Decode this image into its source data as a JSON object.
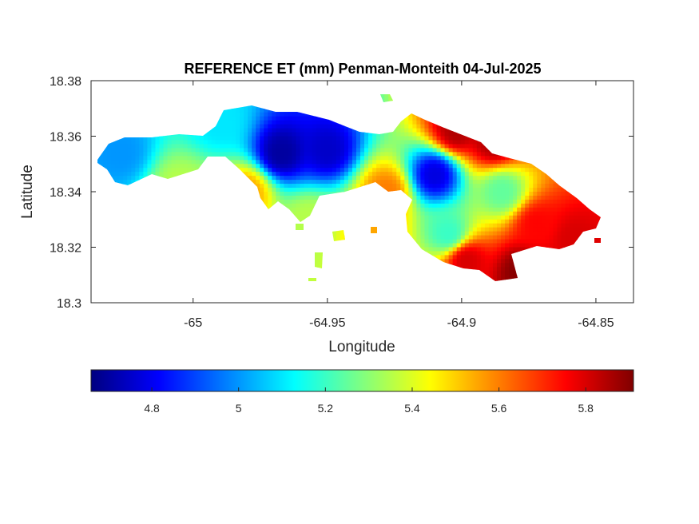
{
  "chart_data": {
    "type": "heatmap",
    "title": "REFERENCE ET (mm) Penman-Monteith 04-Jul-2025",
    "xlabel": "Longitude",
    "ylabel": "Latitude",
    "xlim": [
      -65.038,
      -64.836
    ],
    "ylim": [
      18.3,
      18.38
    ],
    "xticks": [
      -65,
      -64.95,
      -64.9,
      -64.85
    ],
    "xtick_labels": [
      "-65",
      "-64.95",
      "-64.9",
      "-64.85"
    ],
    "yticks": [
      18.3,
      18.32,
      18.34,
      18.36,
      18.38
    ],
    "ytick_labels": [
      "18.3",
      "18.32",
      "18.34",
      "18.36",
      "18.38"
    ],
    "colormap": "jet",
    "clim": [
      4.66,
      5.91
    ],
    "colorbar": {
      "location": "bottom",
      "ticks": [
        4.8,
        5,
        5.2,
        5.4,
        5.6,
        5.8
      ],
      "tick_labels": [
        "4.8",
        "5",
        "5.2",
        "5.4",
        "5.6",
        "5.8"
      ]
    },
    "grid": false,
    "value_hotspots": [
      {
        "lon": -64.967,
        "lat": 18.354,
        "value": 4.7
      },
      {
        "lon": -64.95,
        "lat": 18.355,
        "value": 4.75
      },
      {
        "lon": -64.91,
        "lat": 18.346,
        "value": 4.78
      },
      {
        "lon": -65.027,
        "lat": 18.354,
        "value": 5.0
      },
      {
        "lon": -64.902,
        "lat": 18.362,
        "value": 5.85
      },
      {
        "lon": -64.888,
        "lat": 18.358,
        "value": 5.85
      },
      {
        "lon": -64.898,
        "lat": 18.315,
        "value": 5.8
      },
      {
        "lon": -64.878,
        "lat": 18.311,
        "value": 5.9
      },
      {
        "lon": -64.858,
        "lat": 18.323,
        "value": 5.8
      },
      {
        "lon": -64.872,
        "lat": 18.328,
        "value": 5.75
      },
      {
        "lon": -64.932,
        "lat": 18.327,
        "value": 5.55
      },
      {
        "lon": -64.957,
        "lat": 18.33,
        "value": 5.35
      },
      {
        "lon": -64.98,
        "lat": 18.34,
        "value": 5.55
      },
      {
        "lon": -64.928,
        "lat": 18.34,
        "value": 5.6
      },
      {
        "lon": -64.885,
        "lat": 18.34,
        "value": 5.25
      },
      {
        "lon": -64.905,
        "lat": 18.325,
        "value": 5.2
      },
      {
        "lon": -65.005,
        "lat": 18.342,
        "value": 5.35
      },
      {
        "lon": -64.99,
        "lat": 18.365,
        "value": 5.1
      }
    ]
  }
}
